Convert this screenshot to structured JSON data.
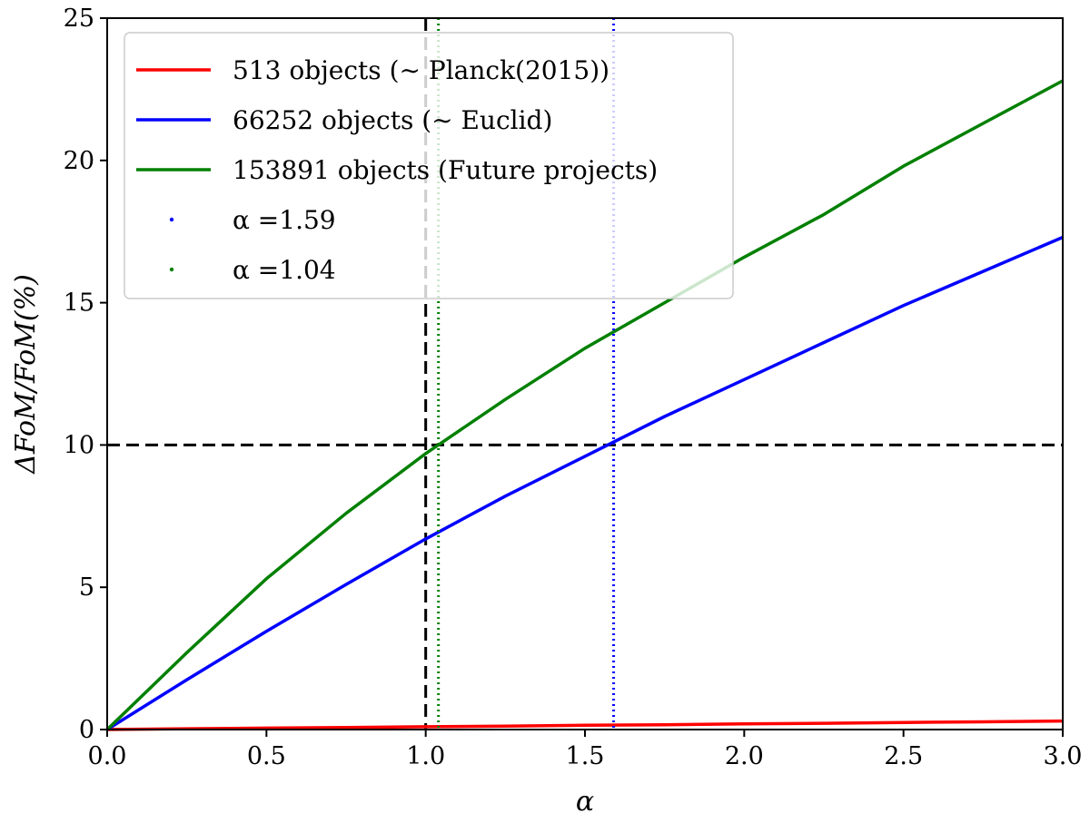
{
  "chart_data": {
    "type": "line",
    "xlabel": "α",
    "ylabel": "ΔFoM/FoM(%)",
    "xlim": [
      0.0,
      3.0
    ],
    "ylim": [
      0,
      25
    ],
    "x_ticks": [
      "0.0",
      "0.5",
      "1.0",
      "1.5",
      "2.0",
      "2.5",
      "3.0"
    ],
    "y_ticks": [
      "0",
      "5",
      "10",
      "15",
      "20",
      "25"
    ],
    "grid": false,
    "legend_position": "top-left",
    "x": [
      0.0,
      0.25,
      0.5,
      0.75,
      1.0,
      1.25,
      1.5,
      1.75,
      2.0,
      2.25,
      2.5,
      2.75,
      3.0
    ],
    "series": [
      {
        "name": "513 objects (∼ Planck(2015))",
        "color": "#ff0000",
        "style": "solid",
        "values": [
          0.0,
          0.03,
          0.05,
          0.07,
          0.1,
          0.12,
          0.15,
          0.17,
          0.2,
          0.22,
          0.25,
          0.27,
          0.3
        ]
      },
      {
        "name": "66252 objects (∼ Euclid)",
        "color": "#0000ff",
        "style": "solid",
        "values": [
          0.0,
          1.75,
          3.45,
          5.1,
          6.7,
          8.2,
          9.6,
          11.0,
          12.3,
          13.6,
          14.9,
          16.1,
          17.3
        ]
      },
      {
        "name": "153891 objects (Future projects)",
        "color": "#008000",
        "style": "solid",
        "values": [
          0.0,
          2.7,
          5.3,
          7.6,
          9.7,
          11.6,
          13.4,
          15.0,
          16.6,
          18.1,
          19.8,
          21.3,
          22.8
        ]
      },
      {
        "name": "α =1.59",
        "color": "#0000ff",
        "style": "dotted",
        "vertical_at": 1.59
      },
      {
        "name": "α =1.04",
        "color": "#008000",
        "style": "dotted",
        "vertical_at": 1.04
      }
    ],
    "reference_lines": [
      {
        "orientation": "horizontal",
        "value": 10,
        "color": "#000000",
        "style": "dashed"
      },
      {
        "orientation": "vertical",
        "value": 1.0,
        "color": "#000000",
        "style": "dashed"
      }
    ]
  }
}
